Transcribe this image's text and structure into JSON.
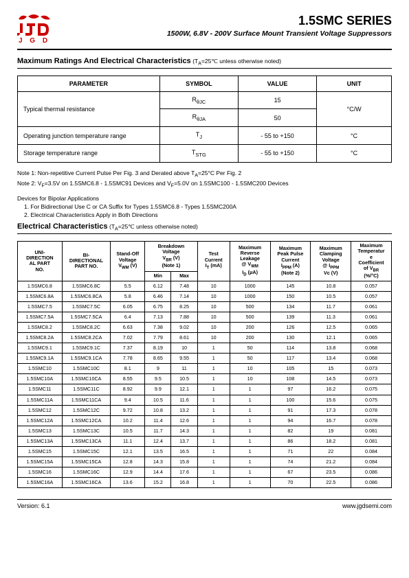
{
  "header": {
    "logo_text": "J G D",
    "series_title": "1.5SMC SERIES",
    "subtitle": "1500W, 6.8V - 200V Surface Mount Transient Voltage Suppressors"
  },
  "ratings_section": {
    "title": "Maximum Ratings And Electrical Characteristics",
    "note": "(T",
    "note_sub": "A",
    "note_rest": "=25℃ unless otherwise noted)",
    "headers": [
      "PARAMETER",
      "SYMBOL",
      "VALUE",
      "UNIT"
    ],
    "col_widths": [
      "38%",
      "21%",
      "21%",
      "20%"
    ],
    "rows": [
      {
        "param": "Typical thermal resistance",
        "rowspan_param": 2,
        "symbol_html": "R<sub>θJC</sub>",
        "value": "15",
        "unit": "°C/W",
        "rowspan_unit": 2
      },
      {
        "symbol_html": "R<sub>θJA</sub>",
        "value": "50"
      },
      {
        "param": "Operating junction temperature range",
        "symbol_html": "T<sub>J</sub>",
        "value": "- 55 to +150",
        "unit": "°C"
      },
      {
        "param": "Storage temperature range",
        "symbol_html": "T<sub>STG</sub>",
        "value": "- 55 to +150",
        "unit": "°C"
      }
    ]
  },
  "notes": [
    "Note 1: Non-repetitive Current Pulse Per Fig. 3 and Derated above T",
    "Note 2: V"
  ],
  "note1_sub": "A",
  "note1_rest": "=25°C Per Fig. 2",
  "note2_sub": "F",
  "note2_rest": "=3.5V on 1.5SMC6.8 - 1.5SMC91 Devices and V",
  "note2_sub2": "F",
  "note2_rest2": "=5.0V on 1.5SMC100 - 1.5SMC200 Devices",
  "devices": {
    "title": "Devices for Bipolar Applications",
    "items": [
      "1. For Bidirectional Use C or CA Suffix for Types 1.5SMC6.8 - Types 1.5SMC200A",
      "2. Electrical Characteristics Apply in Both Directions"
    ]
  },
  "elec_section": {
    "title": "Electrical Characteristics",
    "note": "(T",
    "note_sub": "A",
    "note_rest": "=25℃ unless otherwise noted)",
    "col_widths": [
      "11%",
      "12%",
      "8.5%",
      "6.5%",
      "6.5%",
      "8%",
      "10%",
      "10%",
      "10%",
      "10%"
    ],
    "header_row1": [
      {
        "text_html": "UNI-<br>DIRECTION<br>AL PART<br>NO.",
        "rowspan": 2
      },
      {
        "text_html": "BI-<br>DIRECTIONAL<br>PART NO.",
        "rowspan": 2
      },
      {
        "text_html": "Stand-Off<br>Voltage<br>V<sub>WM</sub> (V)",
        "rowspan": 2
      },
      {
        "text_html": "Breakdown<br>Voltage<br>V<sub>BR</sub> (V)<br>(Note 1)",
        "colspan": 2
      },
      {
        "text_html": "Test<br>Current<br>I<sub>T</sub> (mA)",
        "rowspan": 2
      },
      {
        "text_html": "Maximum<br>Reverse<br>Leakage<br>@ V<sub>WM</sub><br>I<sub>D</sub> (μA)",
        "rowspan": 2
      },
      {
        "text_html": "Maximum<br>Peak Pulse<br>Current<br>I<sub>PPM</sub> (A)<br>(Note 2)",
        "rowspan": 2
      },
      {
        "text_html": "Maximum<br>Clamping<br>Voltage<br>@ I<sub>PPM</sub><br>Vc (V)",
        "rowspan": 2
      },
      {
        "text_html": "Maximum<br>Temperatur<br>e<br>Coefficient<br>of V<sub>BR</sub><br>(%/°C)",
        "rowspan": 2
      }
    ],
    "header_row2": [
      {
        "text": "Min"
      },
      {
        "text": "Max"
      }
    ],
    "rows": [
      [
        "1.5SMC6.8",
        "1.5SMC6.8C",
        "5.5",
        "6.12",
        "7.48",
        "10",
        "1000",
        "145",
        "10.8",
        "0.057"
      ],
      [
        "1.5SMC6.8A",
        "1.5SMC6.8CA",
        "5.8",
        "6.46",
        "7.14",
        "10",
        "1000",
        "150",
        "10.5",
        "0.057"
      ],
      [
        "1.5SMC7.5",
        "1.5SMC7.5C",
        "6.05",
        "6.75",
        "8.25",
        "10",
        "500",
        "134",
        "11.7",
        "0.061"
      ],
      [
        "1.5SMC7.5A",
        "1.5SMC7.5CA",
        "6.4",
        "7.13",
        "7.88",
        "10",
        "500",
        "139",
        "11.3",
        "0.061"
      ],
      [
        "1.5SMC8.2",
        "1.5SMC8.2C",
        "6.63",
        "7.38",
        "9.02",
        "10",
        "200",
        "126",
        "12.5",
        "0.065"
      ],
      [
        "1.5SMC8.2A",
        "1.5SMC8.2CA",
        "7.02",
        "7.79",
        "8.61",
        "10",
        "200",
        "130",
        "12.1",
        "0.065"
      ],
      [
        "1.5SMC9.1",
        "1.5SMC9.1C",
        "7.37",
        "8.19",
        "10",
        "1",
        "50",
        "114",
        "13.8",
        "0.068"
      ],
      [
        "1.5SMC9.1A",
        "1.5SMC9.1CA",
        "7.78",
        "8.65",
        "9.55",
        "1",
        "50",
        "117",
        "13.4",
        "0.068"
      ],
      [
        "1.5SMC10",
        "1.5SMC10C",
        "8.1",
        "9",
        "11",
        "1",
        "10",
        "105",
        "15",
        "0.073"
      ],
      [
        "1.5SMC10A",
        "1.5SMC10CA",
        "8.55",
        "9.5",
        "10.5",
        "1",
        "10",
        "108",
        "14.5",
        "0.073"
      ],
      [
        "1.5SMC11",
        "1.5SMC11C",
        "8.92",
        "9.9",
        "12.1",
        "1",
        "1",
        "97",
        "16.2",
        "0.075"
      ],
      [
        "1.5SMC11A",
        "1.5SMC11CA",
        "9.4",
        "10.5",
        "11.6",
        "1",
        "1",
        "100",
        "15.6",
        "0.075"
      ],
      [
        "1.5SMC12",
        "1.5SMC12C",
        "9.72",
        "10.8",
        "13.2",
        "1",
        "1",
        "91",
        "17.3",
        "0.078"
      ],
      [
        "1.5SMC12A",
        "1.5SMC12CA",
        "10.2",
        "11.4",
        "12.6",
        "1",
        "1",
        "94",
        "16.7",
        "0.078"
      ],
      [
        "1.5SMC13",
        "1.5SMC13C",
        "10.5",
        "11.7",
        "14.3",
        "1",
        "1",
        "82",
        "19",
        "0.081"
      ],
      [
        "1.5SMC13A",
        "1.5SMC13CA",
        "11.1",
        "12.4",
        "13.7",
        "1",
        "1",
        "86",
        "18.2",
        "0.081"
      ],
      [
        "1.5SMC15",
        "1.5SMC15C",
        "12.1",
        "13.5",
        "16.5",
        "1",
        "1",
        "71",
        "22",
        "0.084"
      ],
      [
        "1.5SMC15A",
        "1.5SMC15CA",
        "12.8",
        "14.3",
        "15.8",
        "1",
        "1",
        "74",
        "21.2",
        "0.084"
      ],
      [
        "1.5SMC16",
        "1.5SMC16C",
        "12.9",
        "14.4",
        "17.6",
        "1",
        "1",
        "67",
        "23.5",
        "0.086"
      ],
      [
        "1.5SMC16A",
        "1.5SMC16CA",
        "13.6",
        "15.2",
        "16.8",
        "1",
        "1",
        "70",
        "22.5",
        "0.086"
      ]
    ]
  },
  "footer": {
    "version": "Version: 6.1",
    "url": "www.jgdsemi.com"
  },
  "colors": {
    "logo_red": "#cc0000",
    "border": "#000000",
    "text": "#000000",
    "bg": "#ffffff"
  }
}
